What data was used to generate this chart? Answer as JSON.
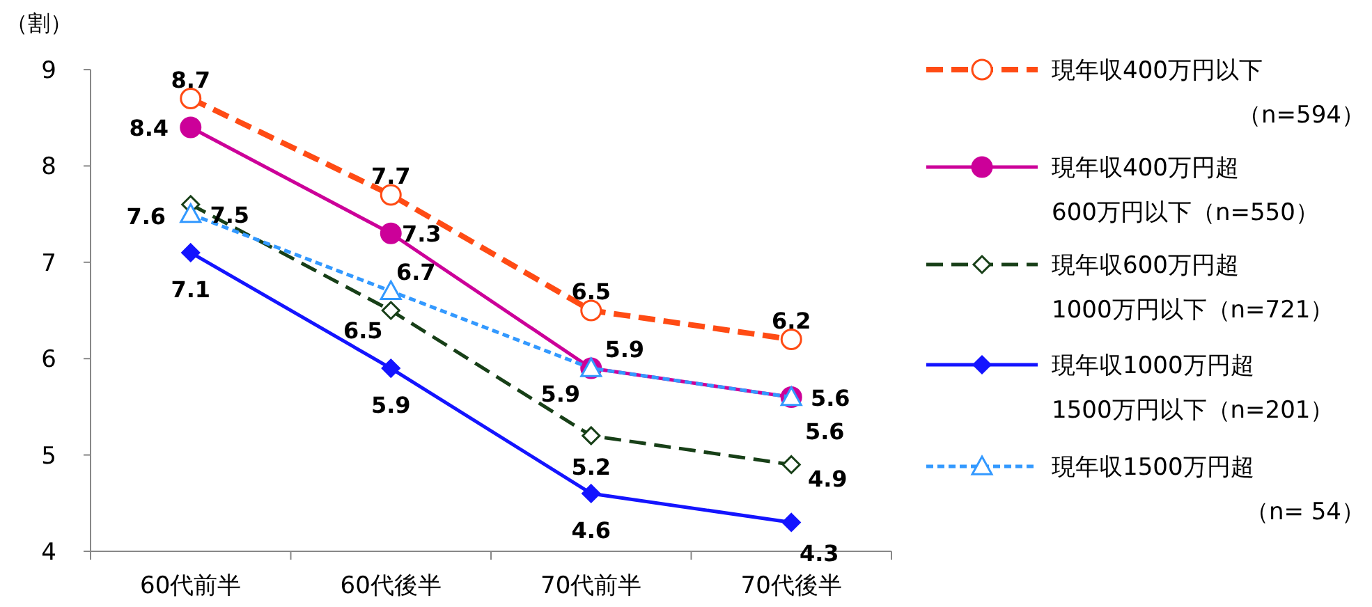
{
  "chart_data": {
    "type": "line",
    "ylabel": "（割）",
    "categories": [
      "60代前半",
      "60代後半",
      "70代前半",
      "70代後半"
    ],
    "ylim": [
      4,
      9
    ],
    "yticks": [
      4,
      5,
      6,
      7,
      8,
      9
    ],
    "grid": false,
    "legend": "right",
    "data_labels": true,
    "series": [
      {
        "name": "現年収400万円以下（n=594）",
        "color": "#ff4b14",
        "values": [
          8.7,
          7.7,
          6.5,
          6.2
        ],
        "line_style": "dashed",
        "marker": "circle"
      },
      {
        "name": "現年収400万円超600万円以下（n=550）",
        "color": "#cc0099",
        "values": [
          8.4,
          7.3,
          5.9,
          5.6
        ],
        "line_style": "solid",
        "marker": "circle"
      },
      {
        "name": "現年収600万円超1000万円以下（n=721）",
        "color": "#173f17",
        "values": [
          7.6,
          6.5,
          5.2,
          4.9
        ],
        "line_style": "dashed",
        "marker": "diamond"
      },
      {
        "name": "現年収1000万円超1500万円以下（n=201）",
        "color": "#1414ff",
        "values": [
          7.1,
          5.9,
          4.6,
          4.3
        ],
        "line_style": "solid",
        "marker": "diamond"
      },
      {
        "name": "現年収1500万円超（n= 54）",
        "color": "#3399ff",
        "values": [
          7.5,
          6.7,
          5.9,
          5.6
        ],
        "line_style": "dotted",
        "marker": "triangle"
      }
    ]
  }
}
